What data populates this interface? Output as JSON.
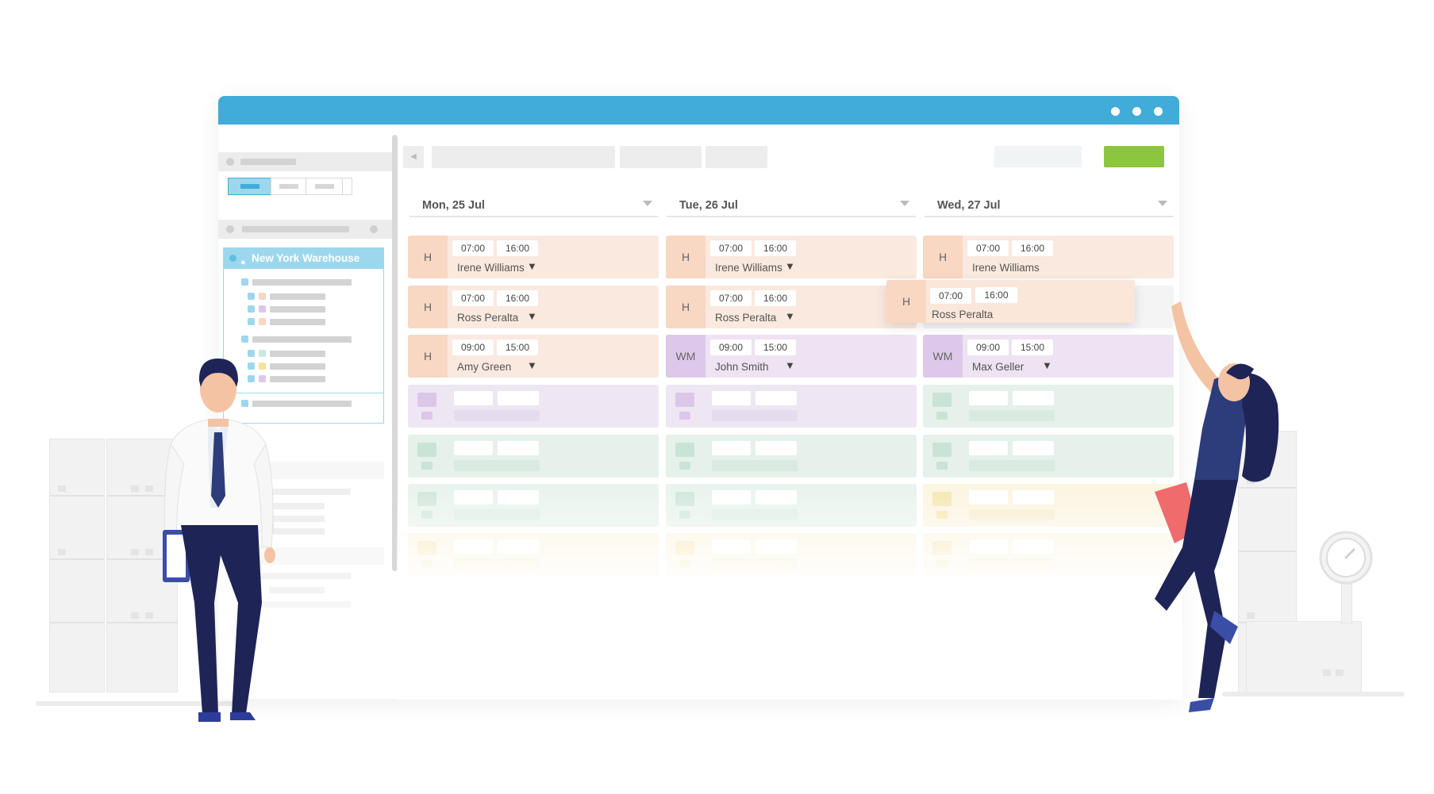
{
  "window": {
    "accent": "#41acd8",
    "action_color": "#8cc63f"
  },
  "sidebar": {
    "location": "New York Warehouse"
  },
  "days": [
    {
      "label": "Mon, 25 Jul"
    },
    {
      "label": "Tue, 26 Jul"
    },
    {
      "label": "Wed, 27 Jul"
    }
  ],
  "shifts": {
    "mon": [
      {
        "code": "H",
        "start": "07:00",
        "end": "16:00",
        "employee": "Irene Williams",
        "caret": "▼"
      },
      {
        "code": "H",
        "start": "07:00",
        "end": "16:00",
        "employee": "Ross Peralta",
        "caret": "▼"
      },
      {
        "code": "H",
        "start": "09:00",
        "end": "15:00",
        "employee": "Amy Green",
        "caret": "▼"
      }
    ],
    "tue": [
      {
        "code": "H",
        "start": "07:00",
        "end": "16:00",
        "employee": "Irene Williams",
        "caret": "▼"
      },
      {
        "code": "H",
        "start": "07:00",
        "end": "16:00",
        "employee": "Ross Peralta",
        "caret": "▼"
      },
      {
        "code": "WM",
        "start": "09:00",
        "end": "15:00",
        "employee": "John Smith",
        "caret": "▼"
      }
    ],
    "wed": [
      {
        "code": "H",
        "start": "07:00",
        "end": "16:00",
        "employee": "Irene Williams"
      },
      {
        "code": "WM",
        "start": "09:00",
        "end": "15:00",
        "employee": "Max Geller",
        "caret": "▼"
      }
    ],
    "dragging": {
      "code": "H",
      "start": "07:00",
      "end": "16:00",
      "employee": "Ross Peralta"
    }
  }
}
